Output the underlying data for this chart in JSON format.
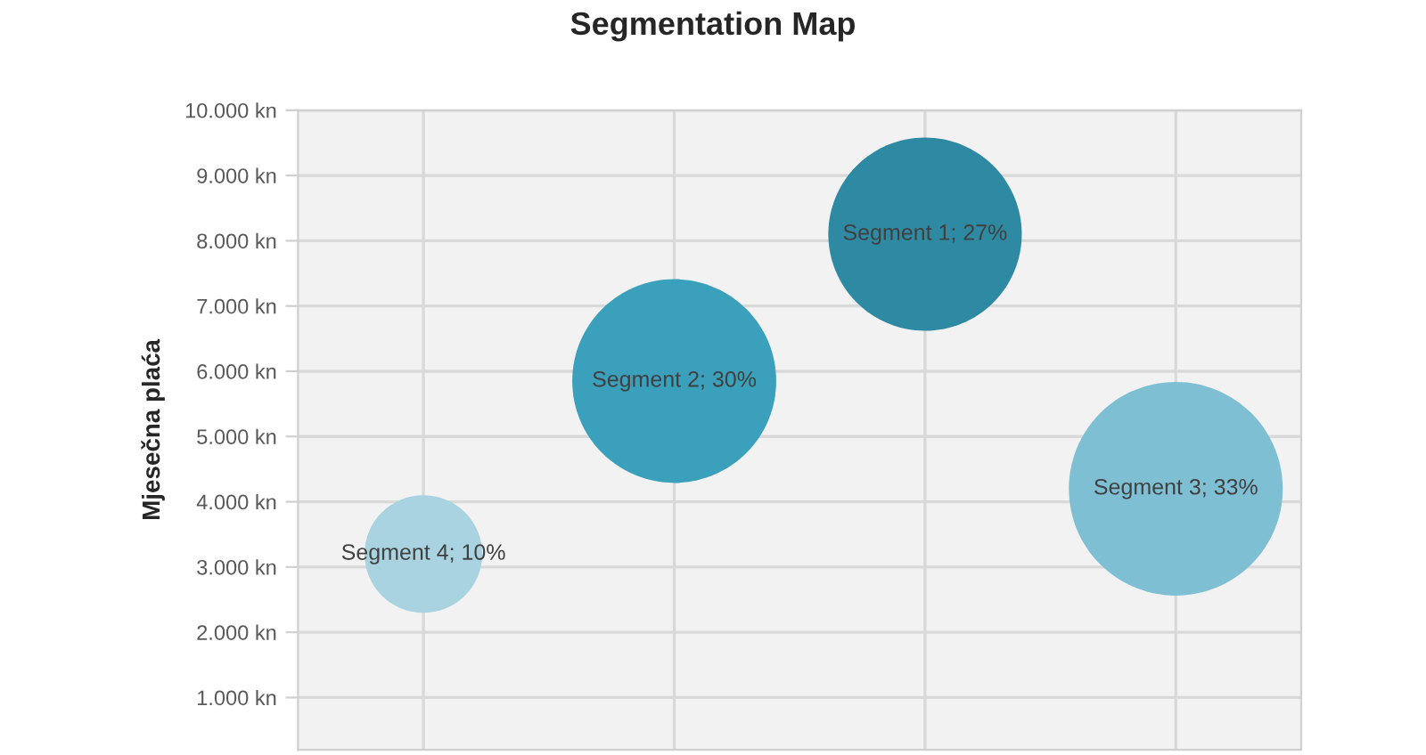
{
  "chart_data": {
    "type": "bubble",
    "title": "Segmentation Map",
    "ylabel": "Mjesečna plaća",
    "categories": [
      null,
      null,
      null,
      null
    ],
    "values": [
      3200,
      5850,
      8100,
      4200
    ],
    "sizes": [
      0.303,
      0.909,
      0.818,
      1
    ],
    "colors": [
      "#a9d3e0",
      "#3aa0bb",
      "#2e8aa3",
      "#7fbfd4"
    ],
    "value_labels": [
      "Segment 4; 10%",
      "Segment 2; 30%",
      "Segment 1; 27%",
      "Segment 3; 33%"
    ],
    "ylim": [
      200,
      10000
    ],
    "yticks": [
      {
        "value": 1000,
        "label": "1.000 kn"
      },
      {
        "value": 2000,
        "label": "2.000 kn"
      },
      {
        "value": 3000,
        "label": "3.000 kn"
      },
      {
        "value": 4000,
        "label": "4.000 kn"
      },
      {
        "value": 5000,
        "label": "5.000 kn"
      },
      {
        "value": 6000,
        "label": "6.000 kn"
      },
      {
        "value": 7000,
        "label": "7.000 kn"
      },
      {
        "value": 8000,
        "label": "8.000 kn"
      },
      {
        "value": 9000,
        "label": "9.000 kn"
      },
      {
        "value": 10000,
        "label": "10.000 kn"
      }
    ],
    "grid": true
  }
}
